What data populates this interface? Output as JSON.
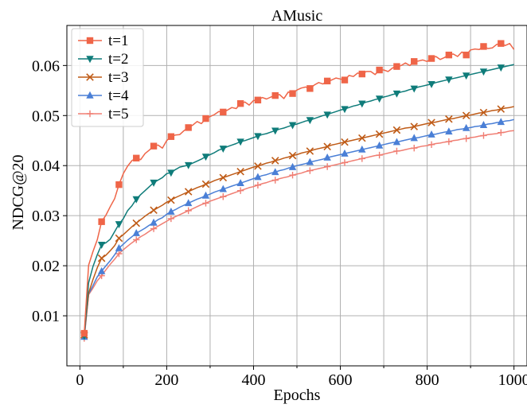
{
  "chart_data": {
    "type": "line",
    "title": "AMusic",
    "xlabel": "Epochs",
    "ylabel": "NDCG@20",
    "xlim": [
      -30,
      1030
    ],
    "ylim": [
      0.0,
      0.068
    ],
    "xticks": [
      0,
      200,
      400,
      600,
      800,
      1000
    ],
    "xtick_labels": [
      "0",
      "200",
      "400",
      "600",
      "800",
      "1000"
    ],
    "yticks": [
      0.01,
      0.02,
      0.03,
      0.04,
      0.05,
      0.06
    ],
    "ytick_labels": [
      "0.01",
      "0.02",
      "0.03",
      "0.04",
      "0.05",
      "0.06"
    ],
    "grid": true,
    "legend_position": "top-left",
    "x": [
      10,
      20,
      30,
      40,
      50,
      60,
      70,
      80,
      90,
      100,
      110,
      120,
      130,
      140,
      150,
      160,
      170,
      180,
      190,
      200,
      210,
      220,
      230,
      240,
      250,
      260,
      270,
      280,
      290,
      300,
      310,
      320,
      330,
      340,
      350,
      360,
      370,
      380,
      390,
      400,
      410,
      420,
      430,
      440,
      450,
      460,
      470,
      480,
      490,
      500,
      510,
      520,
      530,
      540,
      550,
      560,
      570,
      580,
      590,
      600,
      610,
      620,
      630,
      640,
      650,
      660,
      670,
      680,
      690,
      700,
      710,
      720,
      730,
      740,
      750,
      760,
      770,
      780,
      790,
      800,
      810,
      820,
      830,
      840,
      850,
      860,
      870,
      880,
      890,
      900,
      910,
      920,
      930,
      940,
      950,
      960,
      970,
      980,
      990,
      1000
    ],
    "series": [
      {
        "name": "t=1",
        "color": "#ef6548",
        "marker": "square",
        "values": [
          0.0065,
          0.0201,
          0.0228,
          0.0252,
          0.0288,
          0.0301,
          0.0318,
          0.0334,
          0.0362,
          0.0384,
          0.0399,
          0.041,
          0.0415,
          0.0412,
          0.0424,
          0.0431,
          0.0439,
          0.0441,
          0.0435,
          0.045,
          0.0458,
          0.0461,
          0.0462,
          0.047,
          0.0476,
          0.0481,
          0.0488,
          0.0484,
          0.0494,
          0.0498,
          0.0502,
          0.0508,
          0.0507,
          0.0511,
          0.0516,
          0.0514,
          0.0524,
          0.0527,
          0.0521,
          0.053,
          0.0531,
          0.0536,
          0.0533,
          0.0537,
          0.054,
          0.0542,
          0.0534,
          0.0547,
          0.0544,
          0.0551,
          0.0555,
          0.0557,
          0.0554,
          0.0561,
          0.0566,
          0.0563,
          0.0569,
          0.0571,
          0.0575,
          0.0573,
          0.0571,
          0.058,
          0.0578,
          0.0585,
          0.0583,
          0.0588,
          0.0588,
          0.0582,
          0.0591,
          0.0591,
          0.0588,
          0.0595,
          0.0598,
          0.06,
          0.0605,
          0.06,
          0.0608,
          0.0609,
          0.0611,
          0.0608,
          0.0614,
          0.0618,
          0.0612,
          0.0616,
          0.0621,
          0.0623,
          0.0618,
          0.0627,
          0.0621,
          0.0631,
          0.0633,
          0.0632,
          0.0638,
          0.0634,
          0.0635,
          0.0642,
          0.0644,
          0.064,
          0.0644,
          0.0632
        ]
      },
      {
        "name": "t=2",
        "color": "#0f7c7a",
        "marker": "triangle-down",
        "values": [
          0.006,
          0.0166,
          0.0198,
          0.0222,
          0.0242,
          0.0246,
          0.0253,
          0.0268,
          0.0283,
          0.0294,
          0.031,
          0.032,
          0.0333,
          0.0342,
          0.035,
          0.0358,
          0.0366,
          0.0371,
          0.0376,
          0.0384,
          0.0386,
          0.0392,
          0.0397,
          0.0399,
          0.0401,
          0.0405,
          0.0409,
          0.0413,
          0.0418,
          0.0422,
          0.0426,
          0.0431,
          0.0434,
          0.0438,
          0.0441,
          0.0444,
          0.0448,
          0.045,
          0.0453,
          0.0456,
          0.0459,
          0.0462,
          0.0464,
          0.0467,
          0.047,
          0.0473,
          0.0475,
          0.0478,
          0.0481,
          0.0483,
          0.0486,
          0.0489,
          0.0491,
          0.0494,
          0.0497,
          0.05,
          0.0502,
          0.0505,
          0.0508,
          0.0511,
          0.0513,
          0.0516,
          0.0519,
          0.0521,
          0.0524,
          0.0527,
          0.0529,
          0.0532,
          0.0534,
          0.0537,
          0.0539,
          0.0542,
          0.0544,
          0.0547,
          0.0549,
          0.0552,
          0.0554,
          0.0557,
          0.0559,
          0.0561,
          0.0563,
          0.0566,
          0.0568,
          0.057,
          0.0572,
          0.0574,
          0.0576,
          0.0578,
          0.058,
          0.0582,
          0.0584,
          0.0586,
          0.0588,
          0.059,
          0.0592,
          0.0594,
          0.0596,
          0.0598,
          0.06,
          0.0602
        ]
      },
      {
        "name": "t=3",
        "color": "#bf5b17",
        "marker": "x",
        "values": [
          0.0062,
          0.0145,
          0.0172,
          0.0196,
          0.0215,
          0.0221,
          0.023,
          0.024,
          0.0255,
          0.0262,
          0.027,
          0.0278,
          0.0285,
          0.0292,
          0.0299,
          0.0305,
          0.0311,
          0.0316,
          0.0321,
          0.0327,
          0.0331,
          0.0336,
          0.034,
          0.0344,
          0.0348,
          0.0352,
          0.0356,
          0.0359,
          0.0363,
          0.0366,
          0.037,
          0.0373,
          0.0376,
          0.0379,
          0.0382,
          0.0385,
          0.0388,
          0.0391,
          0.0394,
          0.0397,
          0.0399,
          0.0402,
          0.0405,
          0.0407,
          0.041,
          0.0412,
          0.0415,
          0.0417,
          0.042,
          0.0422,
          0.0425,
          0.0427,
          0.0429,
          0.0432,
          0.0434,
          0.0436,
          0.0438,
          0.0441,
          0.0443,
          0.0445,
          0.0447,
          0.0449,
          0.0451,
          0.0453,
          0.0455,
          0.0457,
          0.0459,
          0.0461,
          0.0463,
          0.0465,
          0.0467,
          0.0469,
          0.0471,
          0.0473,
          0.0475,
          0.0476,
          0.0478,
          0.048,
          0.0482,
          0.0484,
          0.0486,
          0.0487,
          0.0489,
          0.0491,
          0.0493,
          0.0494,
          0.0496,
          0.0498,
          0.05,
          0.0501,
          0.0503,
          0.0505,
          0.0506,
          0.0508,
          0.051,
          0.0511,
          0.0513,
          0.0515,
          0.0516,
          0.0518
        ]
      },
      {
        "name": "t=4",
        "color": "#4a7fd6",
        "marker": "triangle-up",
        "values": [
          0.0058,
          0.0143,
          0.016,
          0.0178,
          0.0189,
          0.02,
          0.021,
          0.0222,
          0.0235,
          0.0243,
          0.0251,
          0.0258,
          0.0265,
          0.027,
          0.0275,
          0.0281,
          0.0286,
          0.0292,
          0.0296,
          0.0303,
          0.0308,
          0.0312,
          0.0317,
          0.0321,
          0.0325,
          0.0329,
          0.0333,
          0.0336,
          0.034,
          0.0343,
          0.0347,
          0.035,
          0.0353,
          0.0356,
          0.0359,
          0.0362,
          0.0365,
          0.0368,
          0.0371,
          0.0374,
          0.0377,
          0.038,
          0.0382,
          0.0385,
          0.0387,
          0.039,
          0.0392,
          0.0395,
          0.0397,
          0.04,
          0.0402,
          0.0404,
          0.0407,
          0.0409,
          0.0411,
          0.0413,
          0.0416,
          0.0418,
          0.042,
          0.0422,
          0.0424,
          0.0426,
          0.0428,
          0.043,
          0.0432,
          0.0434,
          0.0436,
          0.0438,
          0.044,
          0.0442,
          0.0444,
          0.0446,
          0.0447,
          0.0449,
          0.0451,
          0.0453,
          0.0455,
          0.0456,
          0.0458,
          0.046,
          0.0462,
          0.0463,
          0.0465,
          0.0467,
          0.0468,
          0.047,
          0.0472,
          0.0473,
          0.0475,
          0.0476,
          0.0478,
          0.0479,
          0.0481,
          0.0483,
          0.0484,
          0.0486,
          0.0487,
          0.0489,
          0.049,
          0.0492
        ]
      },
      {
        "name": "t=5",
        "color": "#f07e73",
        "marker": "plus",
        "values": [
          0.0055,
          0.0142,
          0.0155,
          0.017,
          0.018,
          0.0192,
          0.0203,
          0.0213,
          0.0224,
          0.0232,
          0.0239,
          0.0246,
          0.0252,
          0.0258,
          0.0263,
          0.0269,
          0.0274,
          0.0279,
          0.0284,
          0.0289,
          0.0294,
          0.0298,
          0.0302,
          0.0306,
          0.031,
          0.0314,
          0.0318,
          0.0322,
          0.0325,
          0.0329,
          0.0332,
          0.0335,
          0.0338,
          0.0341,
          0.0344,
          0.0347,
          0.035,
          0.0353,
          0.0356,
          0.0358,
          0.0361,
          0.0364,
          0.0366,
          0.0369,
          0.0371,
          0.0374,
          0.0376,
          0.0378,
          0.0381,
          0.0383,
          0.0385,
          0.0388,
          0.039,
          0.0392,
          0.0394,
          0.0396,
          0.0398,
          0.04,
          0.0402,
          0.0404,
          0.0406,
          0.0408,
          0.041,
          0.0412,
          0.0414,
          0.0416,
          0.0418,
          0.042,
          0.0421,
          0.0423,
          0.0425,
          0.0427,
          0.0429,
          0.043,
          0.0432,
          0.0434,
          0.0435,
          0.0437,
          0.0439,
          0.044,
          0.0442,
          0.0444,
          0.0445,
          0.0447,
          0.0448,
          0.045,
          0.0451,
          0.0453,
          0.0454,
          0.0456,
          0.0457,
          0.0459,
          0.046,
          0.0462,
          0.0463,
          0.0464,
          0.0466,
          0.0467,
          0.0469,
          0.047
        ]
      }
    ]
  }
}
